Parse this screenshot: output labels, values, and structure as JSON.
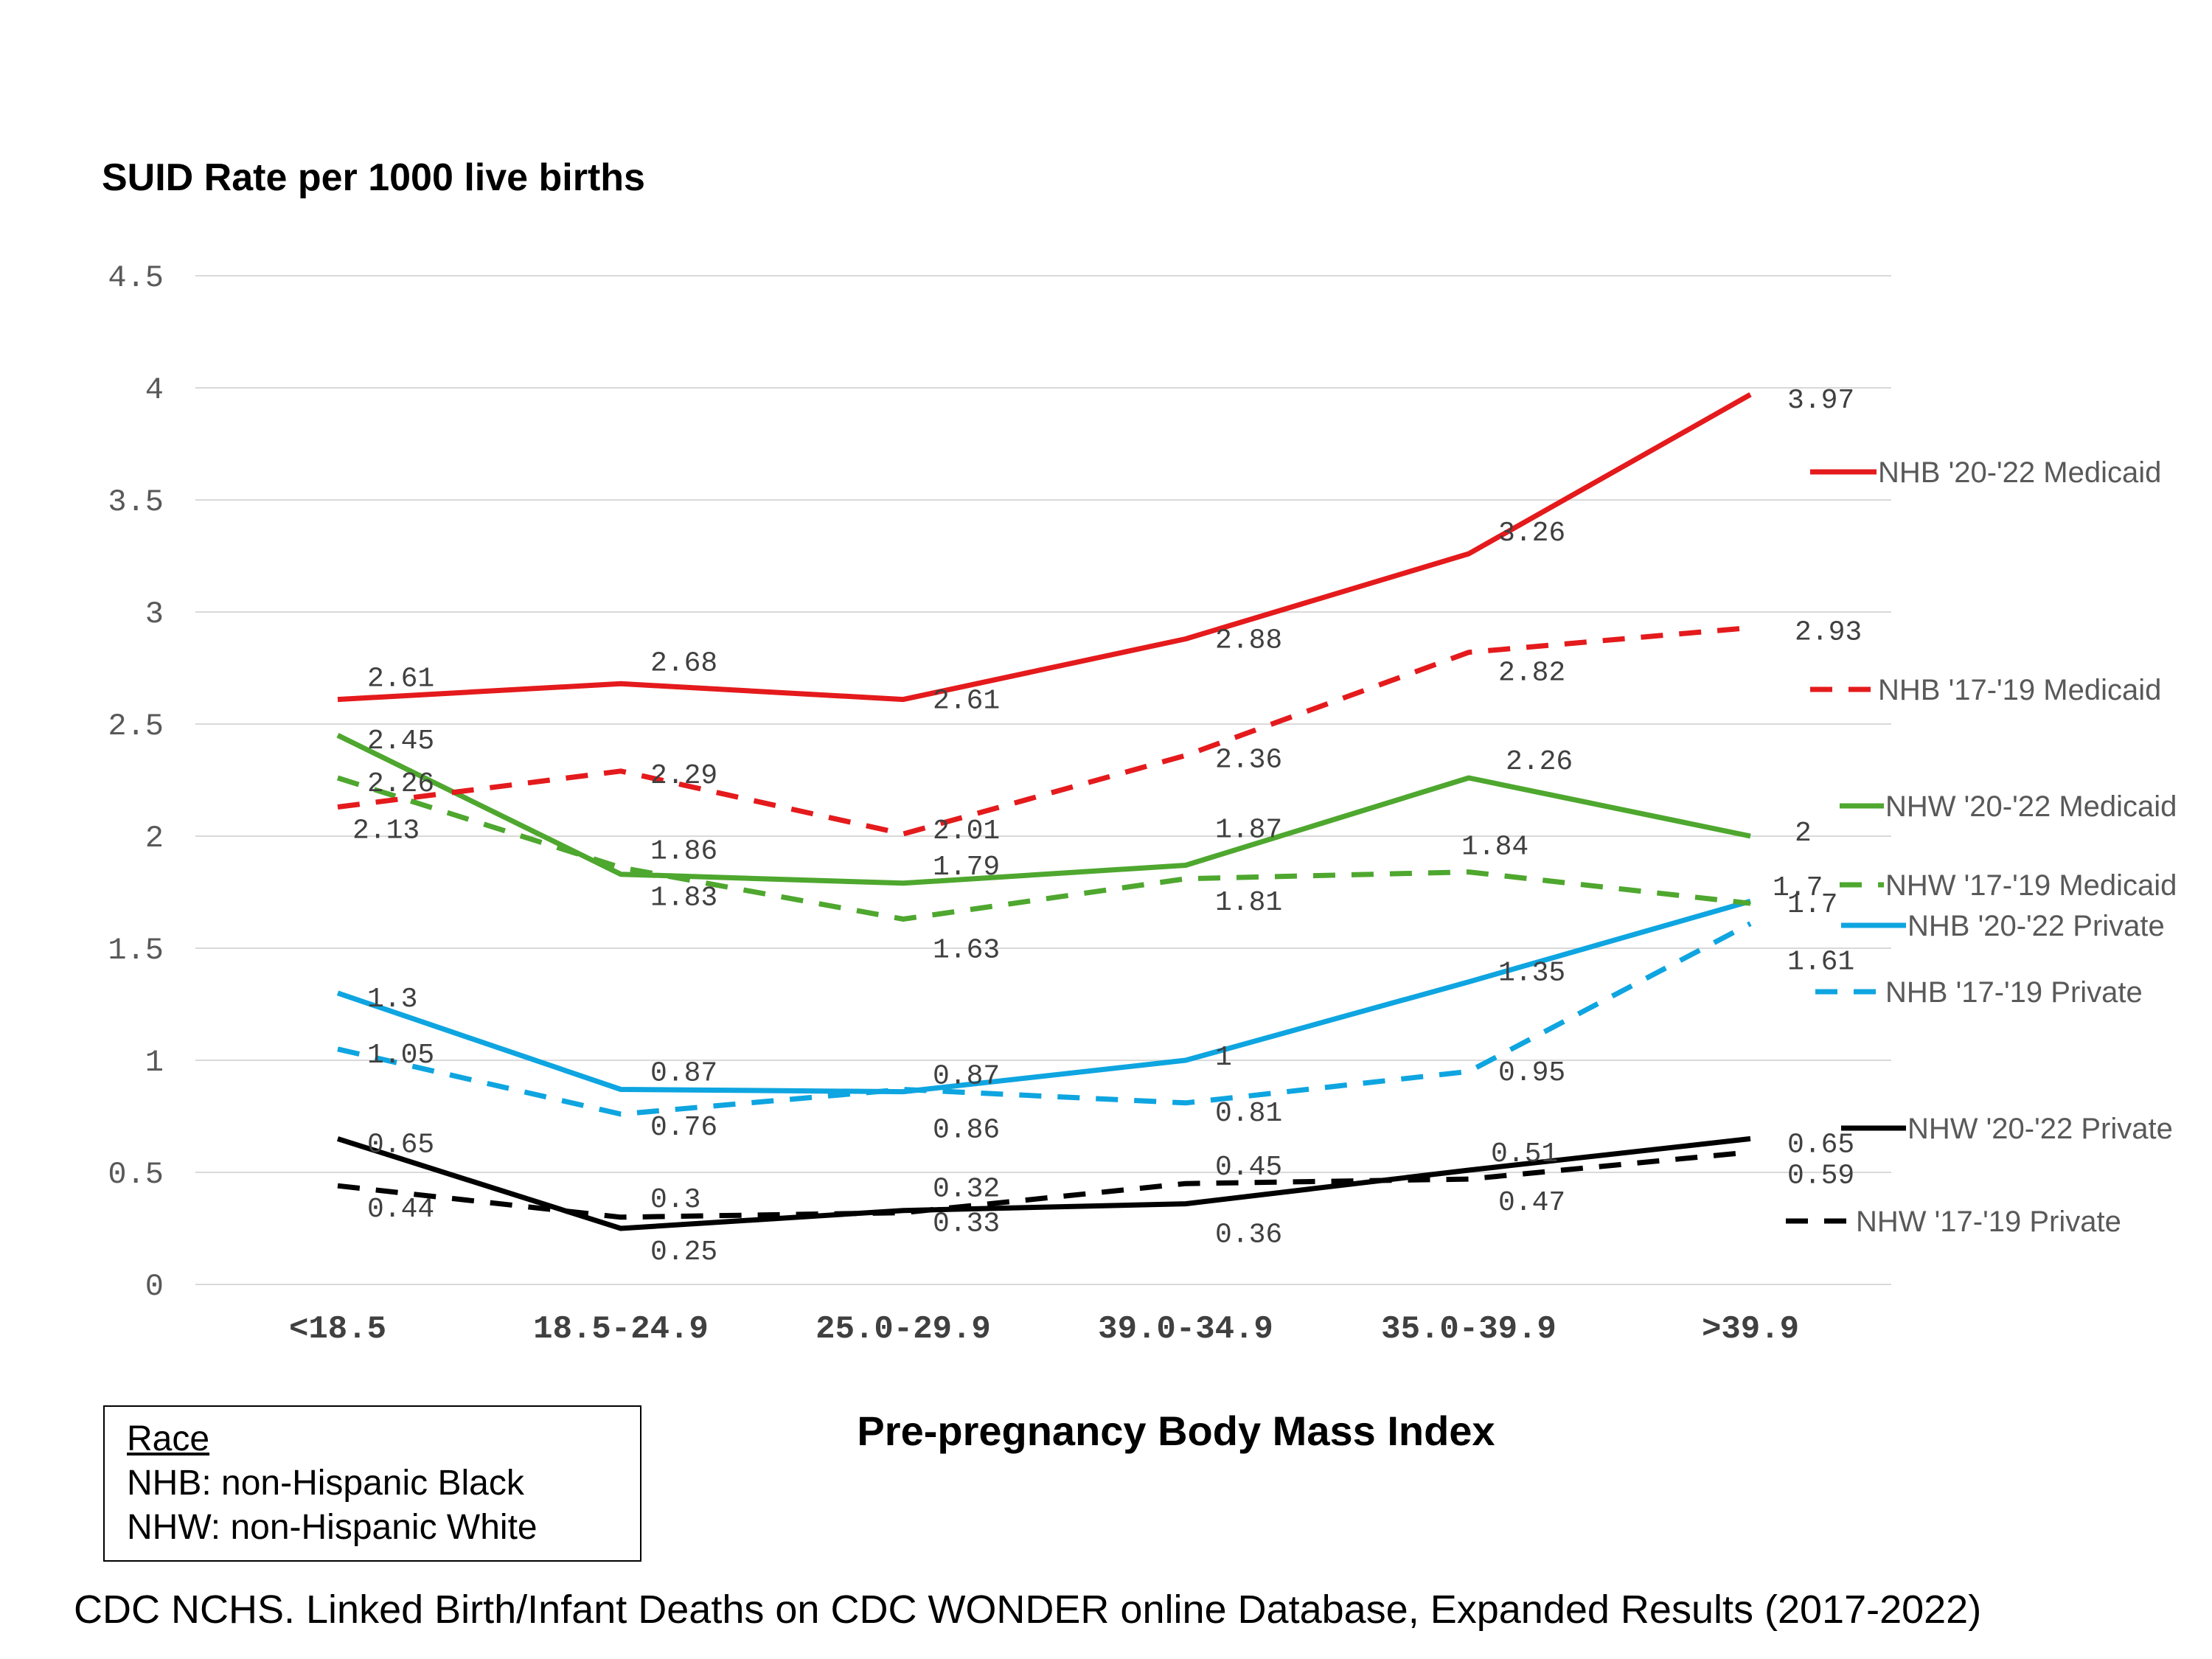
{
  "chart_data": {
    "type": "line",
    "ylabel": "SUID Rate per 1000 live births",
    "xlabel": "Pre-pregnancy Body Mass Index",
    "categories": [
      "<18.5",
      "18.5-24.9",
      "25.0-29.9",
      "39.0-34.9",
      "35.0-39.9",
      ">39.9"
    ],
    "ylim": [
      0,
      4.5
    ],
    "yticks": [
      0,
      0.5,
      1,
      1.5,
      2,
      2.5,
      3,
      3.5,
      4,
      4.5
    ],
    "ytick_labels": [
      "0",
      "0.5",
      "1",
      "1.5",
      "2",
      "2.5",
      "3",
      "3.5",
      "4",
      "4.5"
    ],
    "grid": true,
    "legend_position": "right",
    "series": [
      {
        "name": "NHB '20-'22 Medicaid",
        "color": "#e41a1c",
        "dash": "solid",
        "values": [
          2.61,
          2.68,
          2.61,
          2.88,
          3.26,
          3.97
        ],
        "labels": [
          "2.61",
          "2.68",
          "2.61",
          "2.88",
          "3.26",
          "3.97"
        ]
      },
      {
        "name": "NHB '17-'19 Medicaid",
        "color": "#e41a1c",
        "dash": "dashed",
        "values": [
          2.13,
          2.29,
          2.01,
          2.36,
          2.82,
          2.93
        ],
        "labels": [
          "2.13",
          "2.29",
          "2.01",
          "2.36",
          "2.82",
          "2.93"
        ]
      },
      {
        "name": "NHW '20-'22 Medicaid",
        "color": "#4ea72e",
        "dash": "solid",
        "values": [
          2.45,
          1.83,
          1.79,
          1.87,
          2.26,
          2.0
        ],
        "labels": [
          "2.45",
          "1.83",
          "1.79",
          "1.87",
          "2.26",
          "2"
        ]
      },
      {
        "name": "NHW '17-'19 Medicaid",
        "color": "#4ea72e",
        "dash": "dashed",
        "values": [
          2.26,
          1.86,
          1.63,
          1.81,
          1.84,
          1.7
        ],
        "labels": [
          "2.26",
          "1.86",
          "1.63",
          "1.81",
          "1.84",
          "1.7"
        ]
      },
      {
        "name": "NHB '20-'22 Private",
        "color": "#0ea5e0",
        "dash": "solid",
        "values": [
          1.3,
          0.87,
          0.86,
          1.0,
          1.35,
          1.71
        ],
        "labels": [
          "1.3",
          "0.87",
          "0.86",
          "1",
          "1.35",
          "1.7"
        ]
      },
      {
        "name": "NHB '17-'19 Private",
        "color": "#0ea5e0",
        "dash": "dashed",
        "values": [
          1.05,
          0.76,
          0.87,
          0.81,
          0.95,
          1.61
        ],
        "labels": [
          "1.05",
          "0.76",
          "0.87",
          "0.81",
          "0.95",
          "1.61"
        ]
      },
      {
        "name": "NHW '20-'22 Private",
        "color": "#000000",
        "dash": "solid",
        "values": [
          0.65,
          0.25,
          0.33,
          0.36,
          0.51,
          0.65
        ],
        "labels": [
          "0.65",
          "0.25",
          "0.33",
          "0.36",
          "0.51",
          "0.65"
        ]
      },
      {
        "name": "NHW '17-'19 Private",
        "color": "#000000",
        "dash": "dashed",
        "values": [
          0.44,
          0.3,
          0.32,
          0.45,
          0.47,
          0.59
        ],
        "labels": [
          "0.44",
          "0.3",
          "0.32",
          "0.45",
          "0.47",
          "0.59"
        ]
      }
    ]
  },
  "note": {
    "header": "Race",
    "lines": [
      "NHB: non-Hispanic Black",
      "NHW: non-Hispanic White"
    ]
  },
  "source": "CDC NCHS. Linked Birth/Infant Deaths on CDC WONDER online Database, Expanded Results  (2017-2022)"
}
